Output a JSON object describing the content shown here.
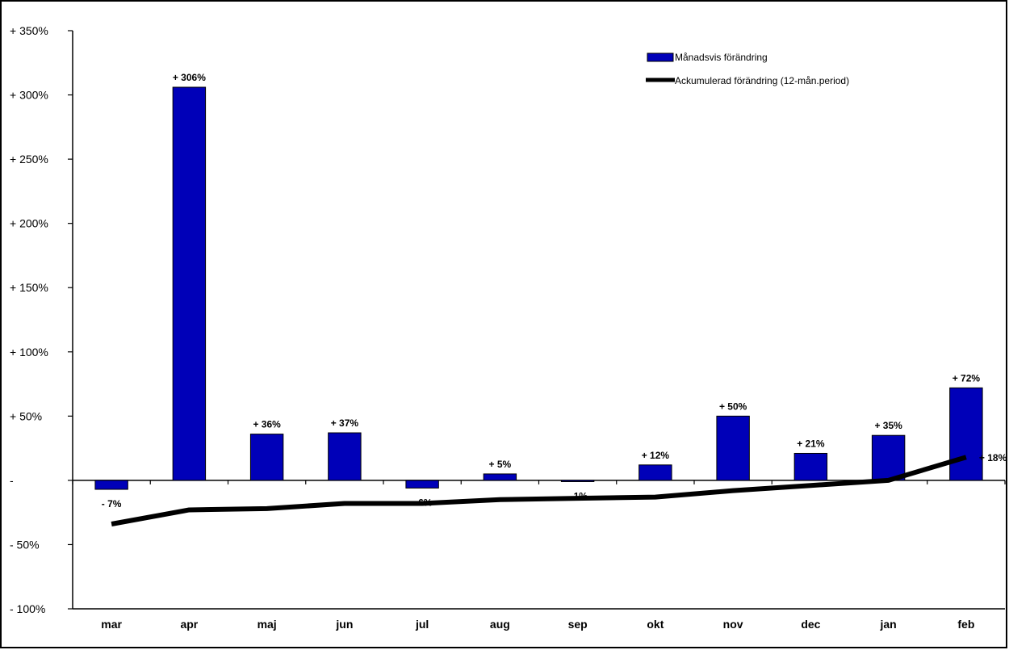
{
  "chart_data": {
    "type": "bar",
    "categories": [
      "mar",
      "apr",
      "maj",
      "jun",
      "jul",
      "aug",
      "sep",
      "okt",
      "nov",
      "dec",
      "jan",
      "feb"
    ],
    "ylim": [
      -100,
      350
    ],
    "grid": false,
    "legend_position": "top-right",
    "yticks": [
      {
        "value": 350,
        "label": "+ 350%"
      },
      {
        "value": 300,
        "label": "+ 300%"
      },
      {
        "value": 250,
        "label": "+ 250%"
      },
      {
        "value": 200,
        "label": "+ 200%"
      },
      {
        "value": 150,
        "label": "+ 150%"
      },
      {
        "value": 100,
        "label": "+ 100%"
      },
      {
        "value": 50,
        "label": "+ 50%"
      },
      {
        "value": 0,
        "label": "-"
      },
      {
        "value": -50,
        "label": "- 50%"
      },
      {
        "value": -100,
        "label": "- 100%"
      }
    ],
    "series": [
      {
        "name": "Månadsvis förändring",
        "type": "bar",
        "color": "#0000B8",
        "values": [
          -7,
          306,
          36,
          37,
          -6,
          5,
          -1,
          12,
          50,
          21,
          35,
          72
        ],
        "labels": [
          "- 7%",
          "+ 306%",
          "+ 36%",
          "+ 37%",
          "- 6%",
          "+ 5%",
          "- 1%",
          "+ 12%",
          "+ 50%",
          "+ 21%",
          "+ 35%",
          "+ 72%"
        ]
      },
      {
        "name": "Ackumulerad förändring (12-mån.period)",
        "type": "line",
        "color": "#000000",
        "values": [
          -34,
          -23,
          -22,
          -18,
          -18,
          -15,
          -14,
          -13,
          -8,
          -4,
          0,
          18
        ],
        "end_label": "+ 18%"
      }
    ]
  }
}
